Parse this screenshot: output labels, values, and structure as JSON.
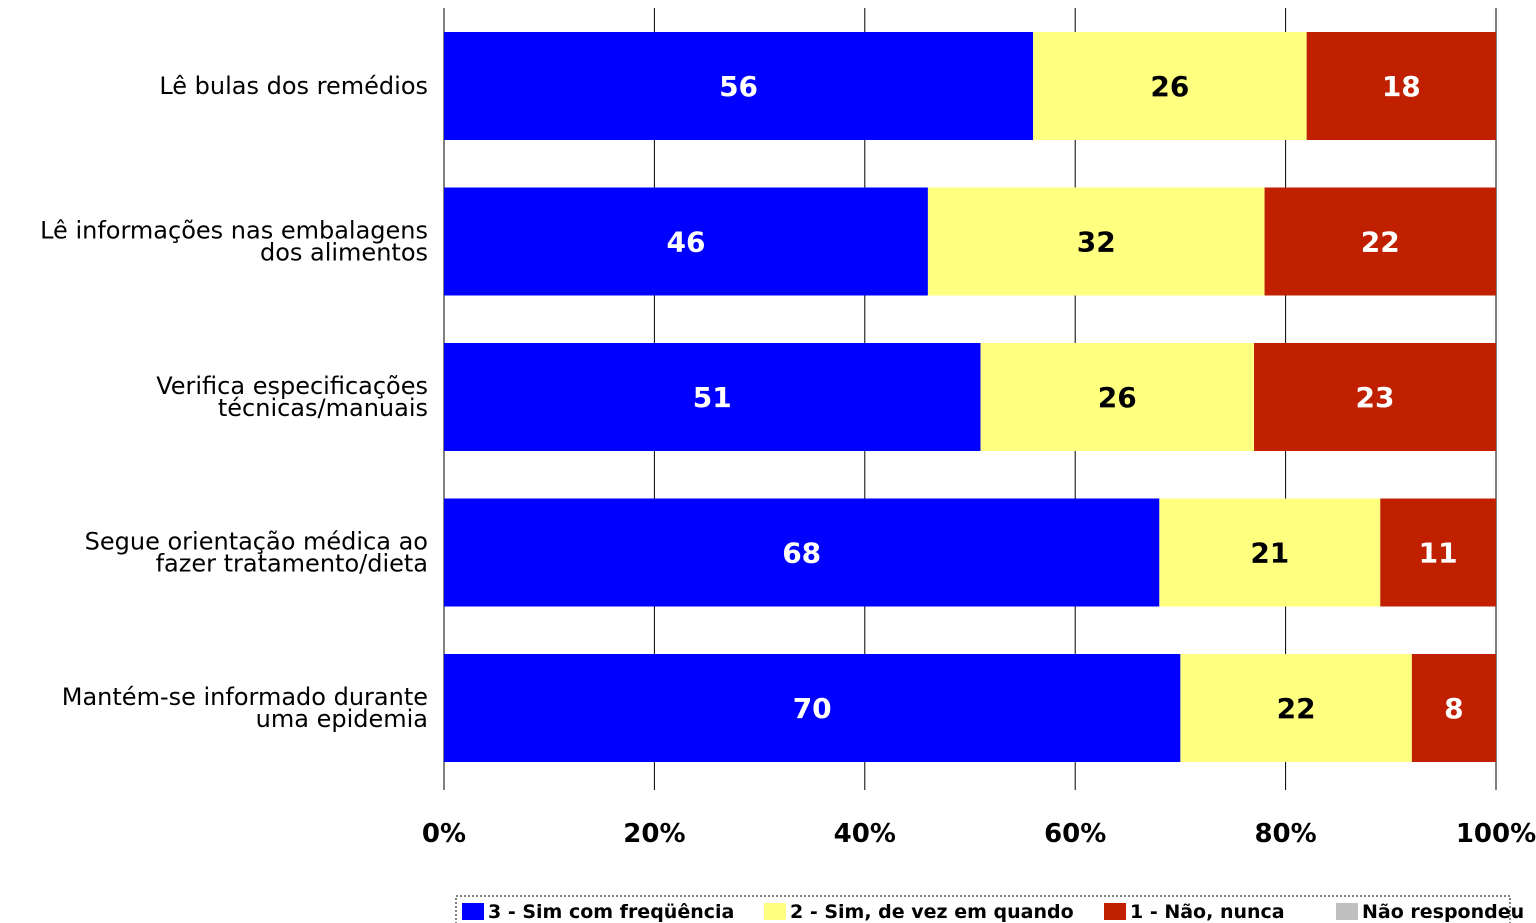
{
  "chart_data": {
    "type": "bar",
    "orientation": "horizontal",
    "stacked": true,
    "categories": [
      [
        "Lê bulas dos remédios"
      ],
      [
        "Lê informações nas embalagens",
        "dos alimentos"
      ],
      [
        "Verifica especificações",
        "técnicas/manuais"
      ],
      [
        "Segue orientação  médica ao",
        "fazer tratamento/dieta"
      ],
      [
        "Mantém-se informado durante",
        "uma epidemia"
      ]
    ],
    "series": [
      {
        "name": "3 - Sim com freqüência",
        "color": "#0000FF",
        "label_color": "#FFFFFF",
        "values": [
          56,
          46,
          51,
          68,
          70
        ]
      },
      {
        "name": "2 - Sim, de vez em quando",
        "color": "#FFFF80",
        "label_color": "#000000",
        "values": [
          26,
          32,
          26,
          21,
          22
        ]
      },
      {
        "name": "1 - Não, nunca",
        "color": "#C02000",
        "label_color": "#FFFFFF",
        "values": [
          18,
          22,
          23,
          11,
          8
        ]
      },
      {
        "name": "Não respondeu",
        "color": "#C0C0C0",
        "label_color": "#000000",
        "values": [
          0,
          0,
          0,
          0,
          0
        ]
      }
    ],
    "x_ticks": [
      "0%",
      "20%",
      "40%",
      "60%",
      "80%",
      "100%"
    ],
    "xlim": [
      0,
      100
    ],
    "grid": true,
    "legend_position": "bottom"
  }
}
